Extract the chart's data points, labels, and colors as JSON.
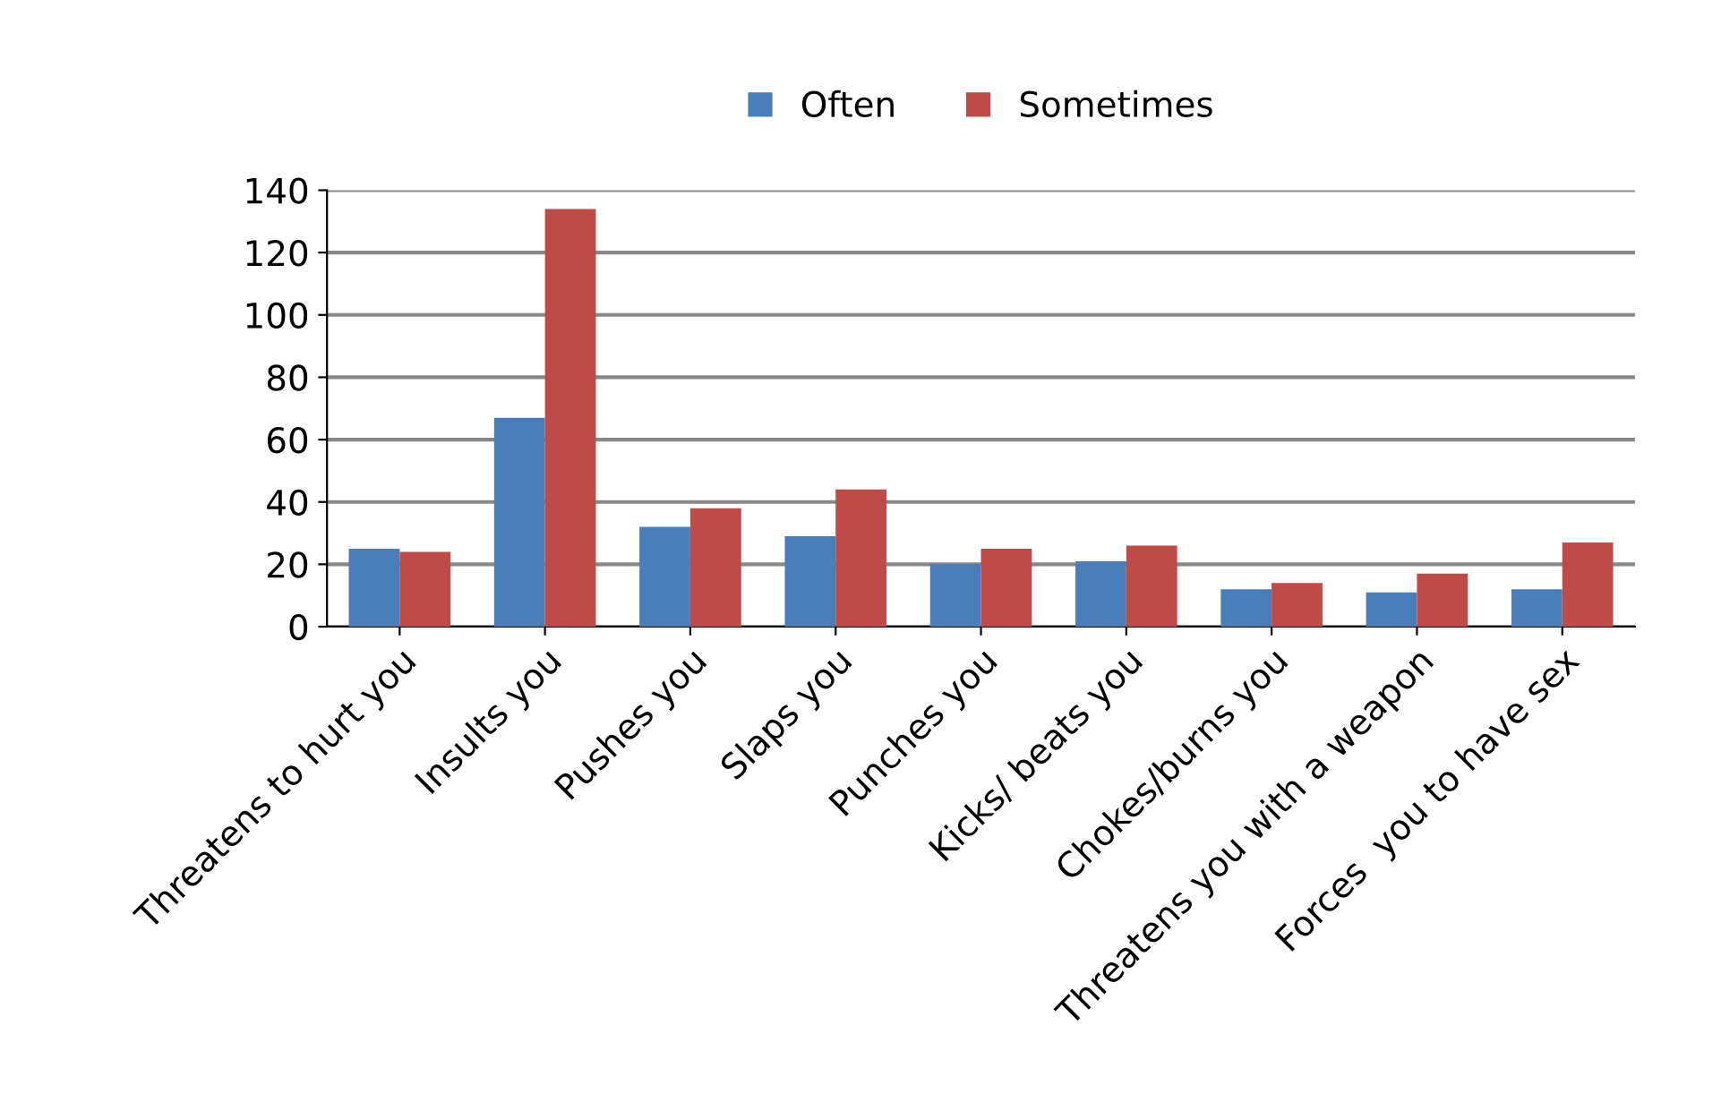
{
  "chart_data": {
    "type": "bar",
    "categories": [
      "Threatens to hurt you",
      "Insults you",
      "Pushes you",
      "Slaps you",
      "Punches you",
      "Kicks/ beats you",
      "Chokes/burns you",
      "Threatens you with a weapon",
      "Forces  you to have sex"
    ],
    "series": [
      {
        "name": "Often",
        "color": "#4a7ebb",
        "values": [
          25,
          67,
          32,
          29,
          20,
          21,
          12,
          11,
          12
        ]
      },
      {
        "name": "Sometimes",
        "color": "#be4b48",
        "values": [
          24,
          134,
          38,
          44,
          25,
          26,
          14,
          17,
          27
        ]
      }
    ],
    "ylim": [
      0,
      140
    ],
    "yticks": [
      0,
      20,
      40,
      60,
      80,
      100,
      120,
      140
    ],
    "grid": "y",
    "legend": "top"
  }
}
